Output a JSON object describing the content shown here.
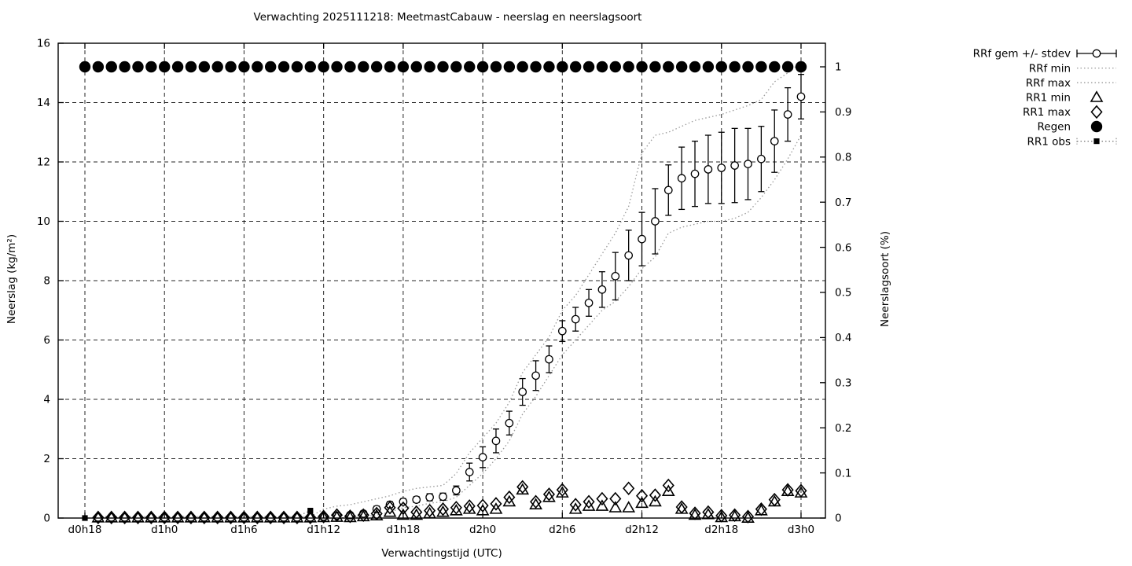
{
  "chart_data": {
    "type": "line",
    "title": "Verwachting 2025111218: MeetmastCabauw - neerslag en neerslagsoort",
    "xlabel": "Verwachtingstijd (UTC)",
    "ylabel_left": "Neerslag (kg/m²)",
    "ylabel_right": "Neerslagsoort (%)",
    "grid": true,
    "legend_position": "outside-top-right",
    "x_axis": {
      "tick_hours": [
        0,
        6,
        12,
        18,
        24,
        30,
        36,
        42,
        48,
        54
      ],
      "tick_labels": [
        "d0h18",
        "d1h0",
        "d1h6",
        "d1h12",
        "d1h18",
        "d2h0",
        "d2h6",
        "d2h12",
        "d2h18",
        "d3h0"
      ],
      "range_hours": [
        -2,
        55.8
      ]
    },
    "y_left": {
      "ticks": [
        0,
        2,
        4,
        6,
        8,
        10,
        12,
        14,
        16
      ],
      "tick_labels": [
        "0",
        "2",
        "4",
        "6",
        "8",
        "10",
        "12",
        "14",
        "16"
      ],
      "range": [
        0,
        16
      ]
    },
    "y_right": {
      "ticks": [
        0,
        0.1,
        0.2,
        0.3,
        0.4,
        0.5,
        0.6,
        0.7,
        0.8,
        0.9,
        1
      ],
      "tick_labels": [
        "0",
        "0.1",
        "0.2",
        "0.3",
        "0.4",
        "0.5",
        "0.6",
        "0.7",
        "0.8",
        "0.9",
        "1"
      ],
      "range": [
        0,
        1.052
      ]
    },
    "legend": [
      {
        "label": "RRf gem +/- stdev",
        "sample": "errorbar"
      },
      {
        "label": "RRf min",
        "sample": "dotted-line"
      },
      {
        "label": "RRf max",
        "sample": "dotted-line"
      },
      {
        "label": "RR1 min",
        "sample": "open-triangle"
      },
      {
        "label": "RR1 max",
        "sample": "open-diamond"
      },
      {
        "label": "Regen",
        "sample": "filled-circle"
      },
      {
        "label": "RR1 obs",
        "sample": "dotted-line-square"
      }
    ],
    "series": {
      "rrf_gem": {
        "name": "RRf gem +/- stdev",
        "axis": "left",
        "marker": "open-circle",
        "start_hour": 1,
        "values": [
          0.02,
          0.02,
          0.02,
          0.02,
          0.02,
          0.02,
          0.02,
          0.02,
          0.02,
          0.02,
          0.02,
          0.02,
          0.02,
          0.02,
          0.02,
          0.02,
          0.02,
          0.05,
          0.08,
          0.1,
          0.15,
          0.3,
          0.45,
          0.55,
          0.62,
          0.7,
          0.72,
          0.93,
          1.55,
          2.05,
          2.6,
          3.2,
          4.25,
          4.8,
          5.35,
          6.3,
          6.7,
          7.25,
          7.7,
          8.15,
          8.85,
          9.4,
          10.0,
          11.05,
          11.45,
          11.6,
          11.75,
          11.8,
          11.88,
          11.93,
          12.1,
          12.7,
          13.6,
          14.2
        ],
        "stdev": [
          0.03,
          0.03,
          0.03,
          0.03,
          0.03,
          0.03,
          0.03,
          0.03,
          0.03,
          0.03,
          0.03,
          0.03,
          0.03,
          0.03,
          0.03,
          0.03,
          0.03,
          0.05,
          0.05,
          0.05,
          0.08,
          0.1,
          0.1,
          0.1,
          0.1,
          0.12,
          0.12,
          0.15,
          0.3,
          0.35,
          0.4,
          0.4,
          0.45,
          0.5,
          0.45,
          0.35,
          0.4,
          0.45,
          0.6,
          0.8,
          0.85,
          0.9,
          1.1,
          0.85,
          1.05,
          1.1,
          1.15,
          1.2,
          1.25,
          1.2,
          1.1,
          1.05,
          0.9,
          0.75
        ]
      },
      "rrf_min": {
        "name": "RRf min",
        "axis": "left",
        "style": "dotted",
        "start_hour": 1,
        "values": [
          0,
          0,
          0,
          0,
          0,
          0,
          0,
          0,
          0,
          0,
          0,
          0,
          0,
          0,
          0,
          0,
          0,
          0.0,
          0.0,
          0.02,
          0.05,
          0.1,
          0.2,
          0.35,
          0.4,
          0.5,
          0.55,
          0.7,
          1.1,
          1.5,
          2.0,
          2.6,
          3.5,
          4.1,
          4.8,
          5.5,
          6.0,
          6.5,
          7.0,
          7.3,
          7.8,
          8.4,
          8.8,
          9.6,
          9.8,
          9.9,
          10.0,
          10.0,
          10.1,
          10.3,
          10.8,
          11.4,
          12.1,
          12.9
        ]
      },
      "rrf_max": {
        "name": "RRf max",
        "axis": "left",
        "style": "dotted",
        "start_hour": 1,
        "values": [
          0.05,
          0.05,
          0.05,
          0.05,
          0.05,
          0.05,
          0.05,
          0.05,
          0.05,
          0.05,
          0.05,
          0.05,
          0.05,
          0.05,
          0.05,
          0.05,
          0.05,
          0.3,
          0.4,
          0.45,
          0.55,
          0.65,
          0.75,
          0.9,
          1.0,
          1.05,
          1.1,
          1.5,
          2.2,
          2.7,
          3.2,
          3.9,
          4.9,
          5.5,
          6.1,
          7.0,
          7.5,
          8.2,
          8.9,
          9.6,
          10.5,
          12.3,
          12.9,
          13.0,
          13.2,
          13.4,
          13.5,
          13.6,
          13.75,
          13.9,
          14.1,
          14.7,
          15.0,
          15.35
        ]
      },
      "rr1_min": {
        "name": "RR1 min",
        "axis": "left",
        "marker": "open-triangle",
        "start_hour": 1,
        "values": [
          0.01,
          0.01,
          0.01,
          0.01,
          0.01,
          0.01,
          0.01,
          0.01,
          0.01,
          0.01,
          0.01,
          0.01,
          0.01,
          0.01,
          0.01,
          0.01,
          0.01,
          0.02,
          0.03,
          0.02,
          0.05,
          0.08,
          0.2,
          0.1,
          0.1,
          0.15,
          0.2,
          0.25,
          0.3,
          0.25,
          0.3,
          0.55,
          0.95,
          0.45,
          0.7,
          0.85,
          0.3,
          0.4,
          0.4,
          0.35,
          0.35,
          0.5,
          0.55,
          0.9,
          0.3,
          0.1,
          0.12,
          0.02,
          0.05,
          0.0,
          0.25,
          0.55,
          0.9,
          0.85
        ]
      },
      "rr1_max": {
        "name": "RR1 max",
        "axis": "left",
        "marker": "open-diamond",
        "start_hour": 1,
        "values": [
          0.02,
          0.02,
          0.02,
          0.02,
          0.02,
          0.02,
          0.02,
          0.02,
          0.02,
          0.02,
          0.02,
          0.02,
          0.02,
          0.02,
          0.02,
          0.02,
          0.02,
          0.05,
          0.1,
          0.06,
          0.1,
          0.15,
          0.35,
          0.33,
          0.2,
          0.25,
          0.3,
          0.35,
          0.4,
          0.42,
          0.48,
          0.7,
          1.05,
          0.55,
          0.8,
          0.95,
          0.45,
          0.55,
          0.65,
          0.65,
          1.0,
          0.75,
          0.77,
          1.1,
          0.37,
          0.16,
          0.2,
          0.08,
          0.1,
          0.05,
          0.3,
          0.62,
          0.95,
          0.92
        ]
      },
      "regen": {
        "name": "Regen",
        "axis": "right",
        "marker": "filled-circle",
        "start_hour": 0,
        "values": [
          1,
          1,
          1,
          1,
          1,
          1,
          1,
          1,
          1,
          1,
          1,
          1,
          1,
          1,
          1,
          1,
          1,
          1,
          1,
          1,
          1,
          1,
          1,
          1,
          1,
          1,
          1,
          1,
          1,
          1,
          1,
          1,
          1,
          1,
          1,
          1,
          1,
          1,
          1,
          1,
          1,
          1,
          1,
          1,
          1,
          1,
          1,
          1,
          1,
          1,
          1,
          1,
          1,
          1,
          1
        ]
      },
      "rr1_obs": {
        "name": "RR1 obs",
        "axis": "left",
        "marker": "filled-square",
        "style": "dotted",
        "start_hour": 0,
        "values": [
          0,
          0,
          0,
          0,
          0,
          0,
          0,
          0,
          0,
          0,
          0,
          0,
          0,
          0,
          0,
          0,
          0.05,
          0.25
        ]
      }
    }
  }
}
